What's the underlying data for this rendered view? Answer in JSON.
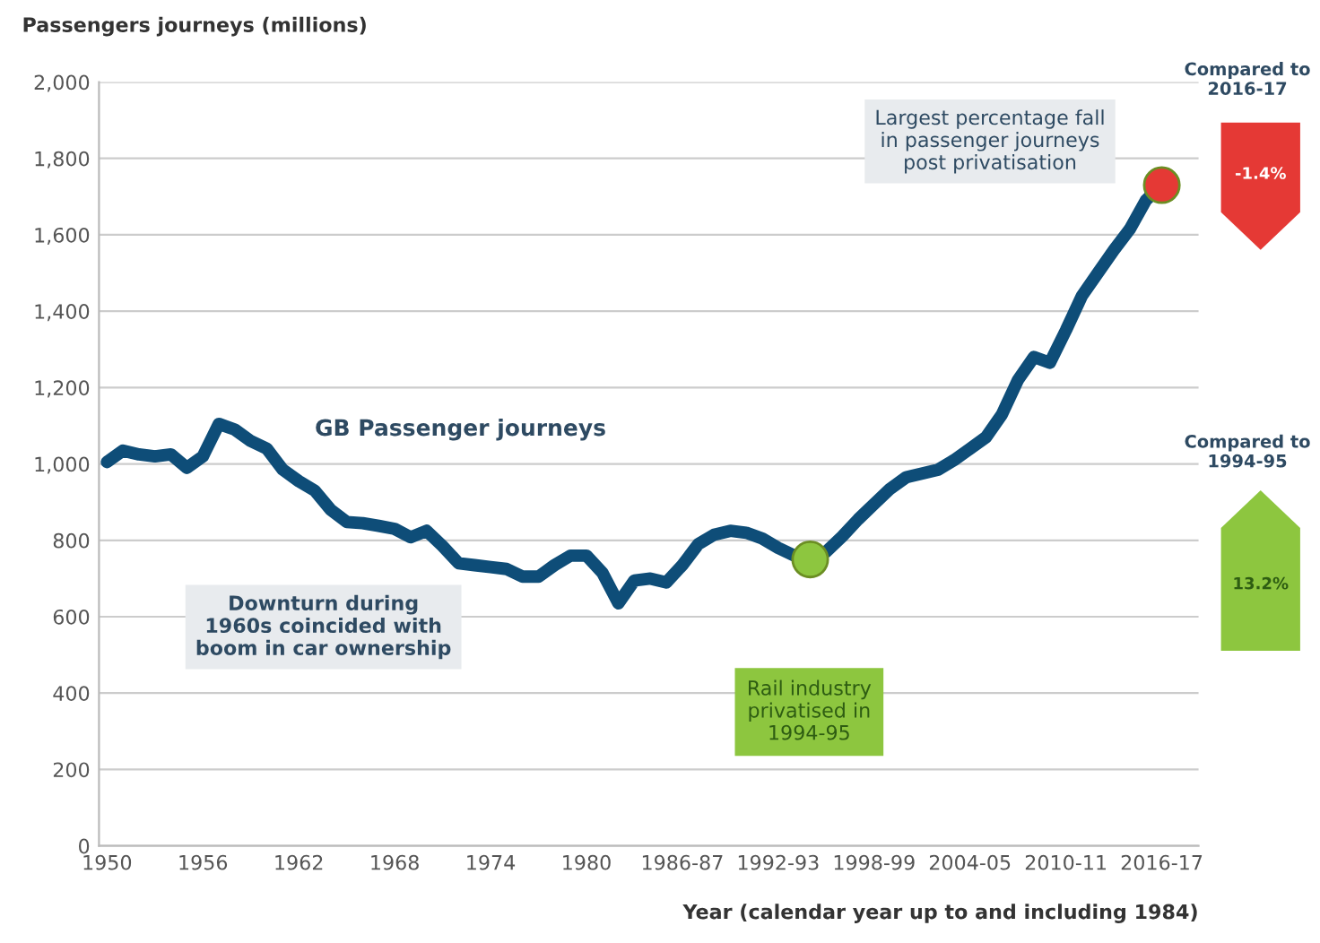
{
  "chart_data": {
    "type": "line",
    "ylabel": "Passengers journeys (millions)",
    "xlabel": "Year (calendar year up to and including 1984)",
    "xlim": [
      1949.5,
      2018.3
    ],
    "ylim": [
      0,
      2000
    ],
    "xticks": [
      1950,
      1956,
      1962,
      1968,
      1974,
      1980,
      {
        "value": 1986,
        "label": "1986-87"
      },
      {
        "value": 1992,
        "label": "1992-93"
      },
      {
        "value": 1998,
        "label": "1998-99"
      },
      {
        "value": 2004,
        "label": "2004-05"
      },
      {
        "value": 2010,
        "label": "2010-11"
      },
      {
        "value": 2016,
        "label": "2016-17"
      }
    ],
    "yticks": [
      0,
      {
        "value": 200,
        "label": "200"
      },
      {
        "value": 400,
        "label": "400"
      },
      {
        "value": 600,
        "label": "600"
      },
      {
        "value": 800,
        "label": "800"
      },
      {
        "value": 1000,
        "label": "1,000"
      },
      {
        "value": 1200,
        "label": "1,200"
      },
      {
        "value": 1400,
        "label": "1,400"
      },
      {
        "value": 1600,
        "label": "1,600"
      },
      {
        "value": 1800,
        "label": "1,800"
      },
      {
        "value": 2000,
        "label": "2,000"
      }
    ],
    "grid": "y",
    "legend": false,
    "line_style": "solid",
    "series": [
      {
        "name": "GB Passenger journeys",
        "marker": "none",
        "color": "#0e4d78",
        "x": [
          1950,
          1951,
          1952,
          1953,
          1954,
          1955,
          1956,
          1957,
          1958,
          1959,
          1960,
          1961,
          1962,
          1963,
          1964,
          1965,
          1966,
          1967,
          1968,
          1969,
          1970,
          1971,
          1972,
          1973,
          1974,
          1975,
          1976,
          1977,
          1978,
          1979,
          1980,
          1981,
          1982,
          1983,
          1984,
          1985,
          1986,
          1987,
          1988,
          1989,
          1990,
          1991,
          1992,
          1993,
          1994,
          1995,
          1996,
          1997,
          1998,
          1999,
          2000,
          2001,
          2002,
          2003,
          2004,
          2005,
          2006,
          2007,
          2008,
          2009,
          2010,
          2011,
          2012,
          2013,
          2014,
          2015,
          2016
        ],
        "values": [
          1005,
          1035,
          1025,
          1020,
          1025,
          990,
          1020,
          1105,
          1090,
          1060,
          1040,
          985,
          955,
          930,
          880,
          848,
          845,
          838,
          830,
          808,
          825,
          785,
          740,
          735,
          730,
          725,
          705,
          705,
          735,
          760,
          760,
          715,
          635,
          695,
          700,
          690,
          735,
          790,
          815,
          825,
          820,
          805,
          780,
          760,
          750,
          770,
          810,
          855,
          895,
          935,
          965,
          975,
          985,
          1010,
          1040,
          1070,
          1130,
          1220,
          1280,
          1265,
          1350,
          1440,
          1500,
          1560,
          1615,
          1690,
          1730
        ]
      },
      {
        "type": "scatter",
        "marker": "circle",
        "x": [
          1994,
          2016
        ],
        "values": [
          750,
          1730
        ],
        "colors": [
          "#8dc63f",
          "#e53935"
        ]
      }
    ],
    "annotations": [
      "Largest percentage fall\nin passenger journeys\npost privatisation",
      "Rail industry\nprivatised in\n1994-95",
      "Downturn during\n1960s coincided with\nboom in car ownership",
      "Compared to\n2016-17",
      "-1.4%",
      "Compared to\n1994-95",
      "13.2%"
    ]
  }
}
